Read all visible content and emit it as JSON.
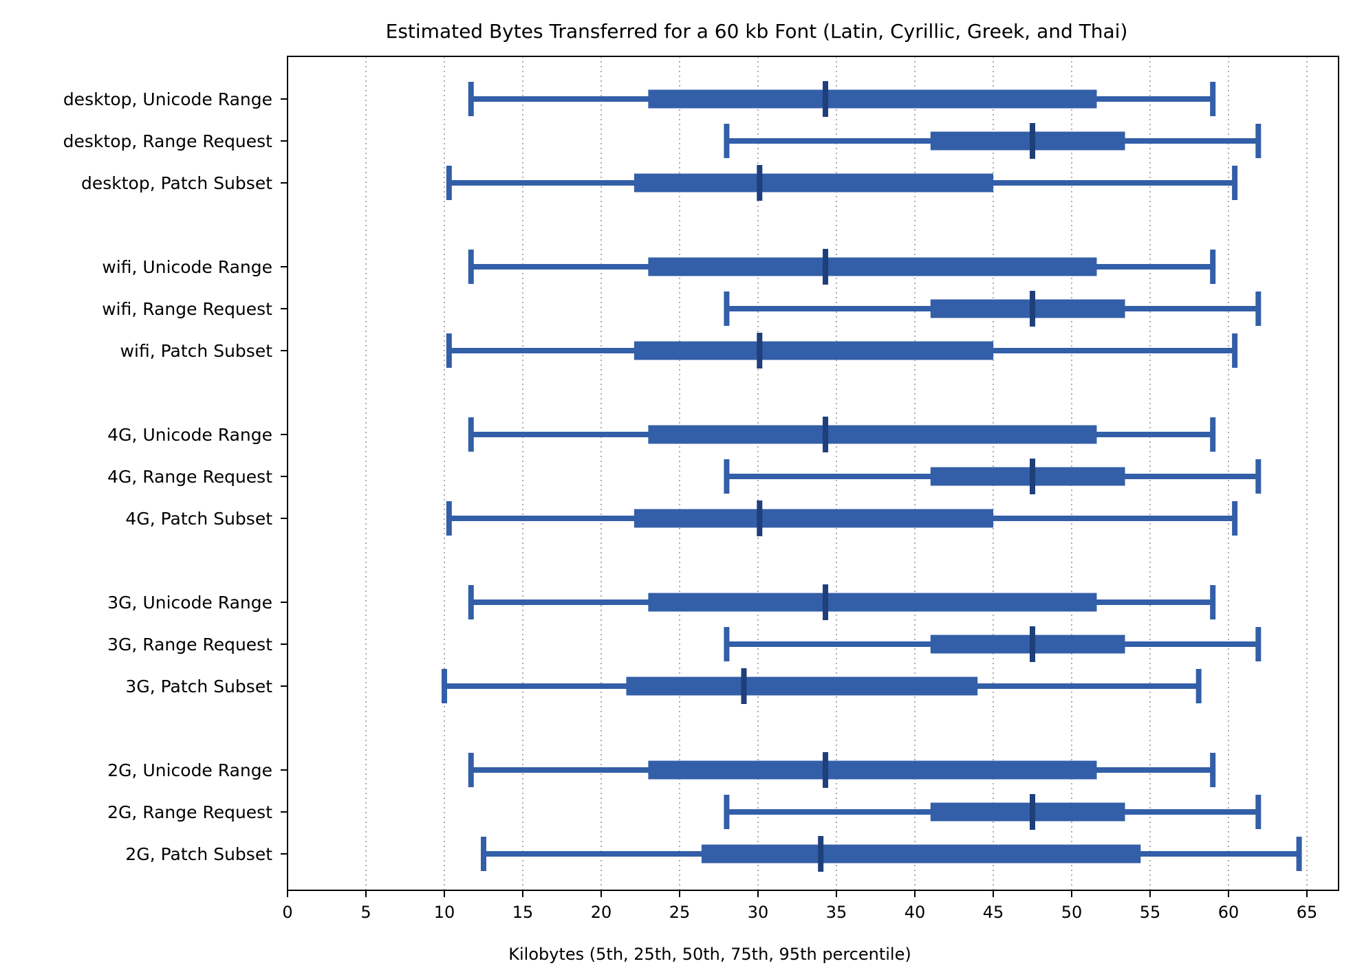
{
  "chart_data": {
    "type": "box",
    "title": "Estimated Bytes Transferred for a 60 kb Font (Latin, Cyrillic, Greek, and Thai)",
    "xlabel": "Kilobytes (5th, 25th, 50th, 75th, 95th percentile)",
    "ylabel": "",
    "xlim": [
      0,
      67
    ],
    "xticks": [
      0,
      5,
      10,
      15,
      20,
      25,
      30,
      35,
      40,
      45,
      50,
      55,
      60,
      65
    ],
    "grid": "vertical dotted",
    "colors": {
      "box": "#335ea8",
      "median": "#1f3f7a",
      "grid": "#aaaaaa"
    },
    "groups": [
      {
        "network": "desktop",
        "rows": [
          {
            "label": "desktop, Unicode Range",
            "p5": 11.7,
            "p25": 23.0,
            "p50": 34.3,
            "p75": 51.6,
            "p95": 59.0
          },
          {
            "label": "desktop, Range Request",
            "p5": 28.0,
            "p25": 41.0,
            "p50": 47.5,
            "p75": 53.4,
            "p95": 61.9
          },
          {
            "label": "desktop, Patch Subset",
            "p5": 10.3,
            "p25": 22.1,
            "p50": 30.1,
            "p75": 45.0,
            "p95": 60.4
          }
        ]
      },
      {
        "network": "wifi",
        "rows": [
          {
            "label": "wifi, Unicode Range",
            "p5": 11.7,
            "p25": 23.0,
            "p50": 34.3,
            "p75": 51.6,
            "p95": 59.0
          },
          {
            "label": "wifi, Range Request",
            "p5": 28.0,
            "p25": 41.0,
            "p50": 47.5,
            "p75": 53.4,
            "p95": 61.9
          },
          {
            "label": "wifi, Patch Subset",
            "p5": 10.3,
            "p25": 22.1,
            "p50": 30.1,
            "p75": 45.0,
            "p95": 60.4
          }
        ]
      },
      {
        "network": "4G",
        "rows": [
          {
            "label": "4G, Unicode Range",
            "p5": 11.7,
            "p25": 23.0,
            "p50": 34.3,
            "p75": 51.6,
            "p95": 59.0
          },
          {
            "label": "4G, Range Request",
            "p5": 28.0,
            "p25": 41.0,
            "p50": 47.5,
            "p75": 53.4,
            "p95": 61.9
          },
          {
            "label": "4G, Patch Subset",
            "p5": 10.3,
            "p25": 22.1,
            "p50": 30.1,
            "p75": 45.0,
            "p95": 60.4
          }
        ]
      },
      {
        "network": "3G",
        "rows": [
          {
            "label": "3G, Unicode Range",
            "p5": 11.7,
            "p25": 23.0,
            "p50": 34.3,
            "p75": 51.6,
            "p95": 59.0
          },
          {
            "label": "3G, Range Request",
            "p5": 28.0,
            "p25": 41.0,
            "p50": 47.5,
            "p75": 53.4,
            "p95": 61.9
          },
          {
            "label": "3G, Patch Subset",
            "p5": 10.0,
            "p25": 21.6,
            "p50": 29.1,
            "p75": 44.0,
            "p95": 58.1
          }
        ]
      },
      {
        "network": "2G",
        "rows": [
          {
            "label": "2G, Unicode Range",
            "p5": 11.7,
            "p25": 23.0,
            "p50": 34.3,
            "p75": 51.6,
            "p95": 59.0
          },
          {
            "label": "2G, Range Request",
            "p5": 28.0,
            "p25": 41.0,
            "p50": 47.5,
            "p75": 53.4,
            "p95": 61.9
          },
          {
            "label": "2G, Patch Subset",
            "p5": 12.5,
            "p25": 26.4,
            "p50": 34.0,
            "p75": 54.4,
            "p95": 64.5
          }
        ]
      }
    ]
  }
}
